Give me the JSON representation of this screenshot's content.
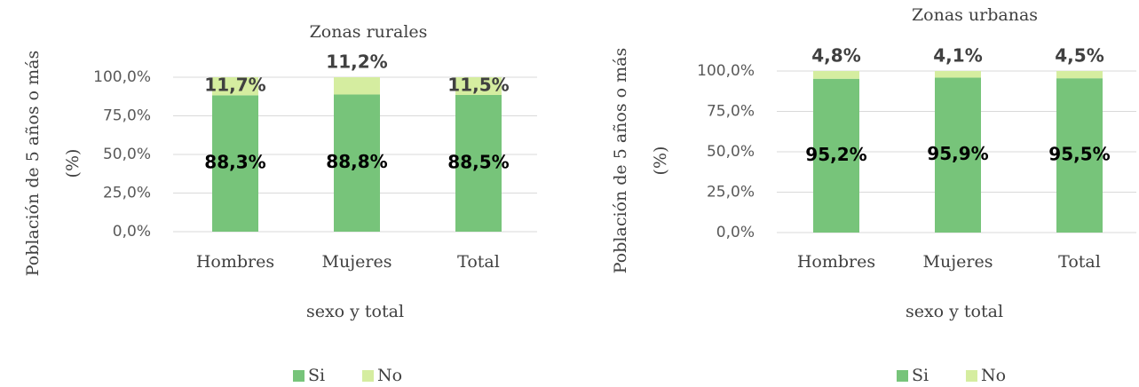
{
  "chart_data": [
    {
      "type": "stacked_bar",
      "title": "Zonas rurales",
      "y_label": [
        "Población de 5 años o más",
        "(%)"
      ],
      "x_label": "sexo y total",
      "categories": [
        "Hombres",
        "Mujeres",
        "Total"
      ],
      "series": [
        {
          "name": "Si",
          "color": "#77c47a",
          "values": [
            88.3,
            88.8,
            88.5
          ],
          "value_labels": [
            "88,3%",
            "88,8%",
            "88,5%"
          ]
        },
        {
          "name": "No",
          "color": "#d5eda0",
          "values": [
            11.7,
            11.2,
            11.5
          ],
          "value_labels": [
            "11,7%",
            "11,2%",
            "11,5%"
          ]
        }
      ],
      "ylim": [
        0,
        100
      ],
      "yticks": [
        {
          "value": 0,
          "label": "0,0%"
        },
        {
          "value": 25,
          "label": "25,0%"
        },
        {
          "value": 50,
          "label": "50,0%"
        },
        {
          "value": 75,
          "label": "75,0%"
        },
        {
          "value": 100,
          "label": "100,0%"
        }
      ],
      "grid": true,
      "legend": "bottom"
    },
    {
      "type": "stacked_bar",
      "title": "Zonas urbanas",
      "y_label": [
        "Población de 5 años o más",
        "(%)"
      ],
      "x_label": "sexo y total",
      "categories": [
        "Hombres",
        "Mujeres",
        "Total"
      ],
      "series": [
        {
          "name": "Si",
          "color": "#77c47a",
          "values": [
            95.2,
            95.9,
            95.5
          ],
          "value_labels": [
            "95,2%",
            "95,9%",
            "95,5%"
          ]
        },
        {
          "name": "No",
          "color": "#d5eda0",
          "values": [
            4.8,
            4.1,
            4.5
          ],
          "value_labels": [
            "4,8%",
            "4,1%",
            "4,5%"
          ]
        }
      ],
      "ylim": [
        0,
        100
      ],
      "yticks": [
        {
          "value": 0,
          "label": "0,0%"
        },
        {
          "value": 25,
          "label": "25,0%"
        },
        {
          "value": 50,
          "label": "50,0%"
        },
        {
          "value": 75,
          "label": "75,0%"
        },
        {
          "value": 100,
          "label": "100,0%"
        }
      ],
      "grid": true,
      "legend": "bottom"
    }
  ]
}
